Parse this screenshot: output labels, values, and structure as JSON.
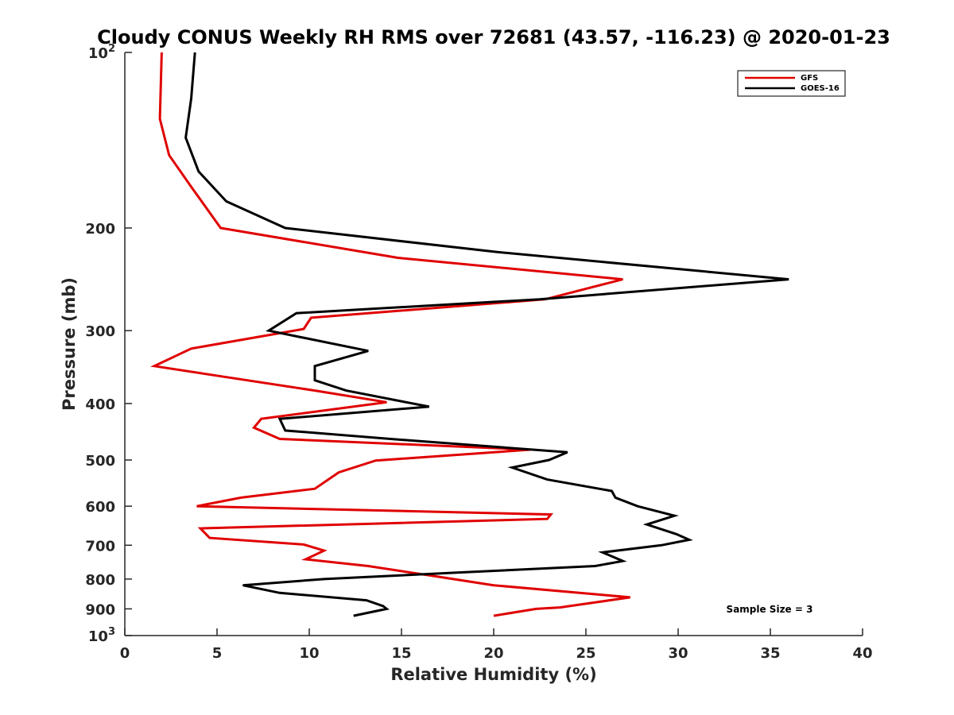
{
  "chart_data": {
    "type": "line",
    "title": "Cloudy CONUS Weekly RH RMS over 72681 (43.57, -116.23) @ 2020-01-23",
    "xlabel": "Relative Humidity (%)",
    "ylabel": "Pressure (mb)",
    "xlim": [
      0,
      40
    ],
    "ylim": [
      100,
      1000
    ],
    "yscale": "log",
    "y_reversed": true,
    "x_ticks": [
      "0",
      "5",
      "10",
      "15",
      "20",
      "25",
      "30",
      "35",
      "40"
    ],
    "x_tick_values": [
      0,
      5,
      10,
      15,
      20,
      25,
      30,
      35,
      40
    ],
    "y_ticks": [
      {
        "value": 100,
        "base": "10",
        "sup": "2"
      },
      {
        "value": 200,
        "base": "200",
        "sup": ""
      },
      {
        "value": 300,
        "base": "300",
        "sup": ""
      },
      {
        "value": 400,
        "base": "400",
        "sup": ""
      },
      {
        "value": 500,
        "base": "500",
        "sup": ""
      },
      {
        "value": 600,
        "base": "600",
        "sup": ""
      },
      {
        "value": 700,
        "base": "700",
        "sup": ""
      },
      {
        "value": 800,
        "base": "800",
        "sup": ""
      },
      {
        "value": 900,
        "base": "900",
        "sup": ""
      },
      {
        "value": 1000,
        "base": "10",
        "sup": "3"
      }
    ],
    "grid": false,
    "legend_position": "top-right",
    "annotation": "Sample Size = 3",
    "series": [
      {
        "name": "GFS",
        "color": "#e00000",
        "points": [
          [
            2.0,
            100
          ],
          [
            1.9,
            130
          ],
          [
            2.4,
            150
          ],
          [
            3.6,
            170
          ],
          [
            5.2,
            200
          ],
          [
            14.8,
            225
          ],
          [
            27.0,
            245
          ],
          [
            22.8,
            265
          ],
          [
            10.1,
            285
          ],
          [
            9.7,
            298
          ],
          [
            3.6,
            322
          ],
          [
            1.6,
            345
          ],
          [
            5.4,
            360
          ],
          [
            10.3,
            380
          ],
          [
            14.2,
            398
          ],
          [
            7.4,
            425
          ],
          [
            7.0,
            440
          ],
          [
            8.4,
            460
          ],
          [
            22.0,
            480
          ],
          [
            13.6,
            501
          ],
          [
            11.6,
            525
          ],
          [
            10.3,
            560
          ],
          [
            6.3,
            580
          ],
          [
            3.9,
            600
          ],
          [
            23.1,
            620
          ],
          [
            22.9,
            631
          ],
          [
            4.1,
            655
          ],
          [
            4.6,
            680
          ],
          [
            9.7,
            698
          ],
          [
            10.8,
            715
          ],
          [
            9.8,
            740
          ],
          [
            13.2,
            760
          ],
          [
            16.7,
            790
          ],
          [
            20.0,
            820
          ],
          [
            27.4,
            860
          ],
          [
            23.6,
            895
          ],
          [
            22.3,
            900
          ],
          [
            20.0,
            925
          ]
        ]
      },
      {
        "name": "GOES-16",
        "color": "#000000",
        "points": [
          [
            3.8,
            100
          ],
          [
            3.6,
            120
          ],
          [
            3.3,
            140
          ],
          [
            4.0,
            160
          ],
          [
            5.5,
            180
          ],
          [
            8.7,
            200
          ],
          [
            20.2,
            220
          ],
          [
            36.0,
            245
          ],
          [
            22.5,
            265
          ],
          [
            9.3,
            280
          ],
          [
            7.8,
            300
          ],
          [
            13.2,
            325
          ],
          [
            10.3,
            345
          ],
          [
            10.3,
            365
          ],
          [
            12.0,
            380
          ],
          [
            16.5,
            405
          ],
          [
            8.4,
            425
          ],
          [
            8.7,
            445
          ],
          [
            14.4,
            460
          ],
          [
            24.0,
            485
          ],
          [
            23.0,
            500
          ],
          [
            21.0,
            515
          ],
          [
            22.9,
            540
          ],
          [
            26.4,
            565
          ],
          [
            26.6,
            580
          ],
          [
            27.8,
            600
          ],
          [
            29.8,
            623
          ],
          [
            28.3,
            645
          ],
          [
            29.9,
            670
          ],
          [
            30.6,
            685
          ],
          [
            29.1,
            700
          ],
          [
            25.9,
            720
          ],
          [
            27.0,
            745
          ],
          [
            25.5,
            760
          ],
          [
            18.0,
            780
          ],
          [
            10.8,
            800
          ],
          [
            6.4,
            820
          ],
          [
            8.4,
            845
          ],
          [
            13.1,
            870
          ],
          [
            14.0,
            890
          ],
          [
            14.2,
            900
          ],
          [
            12.4,
            925
          ]
        ]
      }
    ]
  },
  "colors": {
    "gfs": "#e00000",
    "goes16": "#000000",
    "axis": "#262626"
  }
}
